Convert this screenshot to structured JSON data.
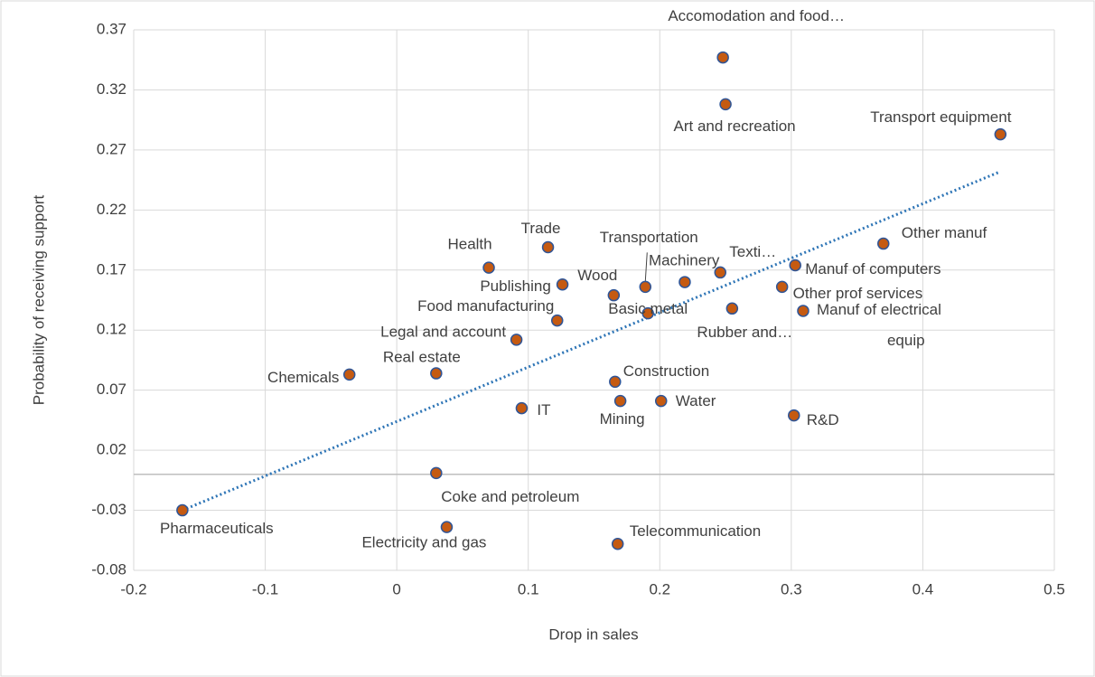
{
  "chart_data": {
    "type": "scatter",
    "x_label": "Drop in sales",
    "y_label": "Probability of receiving support",
    "xlim": [
      -0.2,
      0.5
    ],
    "ylim": [
      -0.08,
      0.37
    ],
    "xticks": [
      -0.2,
      -0.1,
      0,
      0.1,
      0.2,
      0.3,
      0.4,
      0.5
    ],
    "yticks": [
      -0.08,
      -0.03,
      0.02,
      0.07,
      0.12,
      0.17,
      0.22,
      0.27,
      0.32,
      0.37
    ],
    "grid": true,
    "color": "#c55a11",
    "edge_color": "#2f5597",
    "point_labels": [
      "Accomodation and food…",
      "Art and recreation",
      "Transport equipment",
      "Other manuf",
      "Texti…",
      "Manuf of computers",
      "Other prof services",
      "Rubber and…",
      "Manuf of electrical equip",
      "Machinery",
      "Transportation",
      "Basic metal",
      "Wood",
      "Publishing",
      "Trade",
      "Food manufacturing",
      "Health",
      "Legal and account",
      "Real estate",
      "Chemicals",
      "Construction",
      "Mining",
      "Water",
      "IT",
      "R&D",
      "Coke and petroleum",
      "Pharmaceuticals",
      "Electricity and gas",
      "Telecommunication"
    ],
    "x": [
      0.248,
      0.25,
      0.459,
      0.37,
      0.246,
      0.303,
      0.293,
      0.255,
      0.309,
      0.219,
      0.189,
      0.191,
      0.165,
      0.126,
      0.115,
      0.122,
      0.07,
      0.091,
      0.03,
      -0.036,
      0.166,
      0.17,
      0.201,
      0.095,
      0.302,
      0.03,
      -0.163,
      0.038,
      0.168
    ],
    "y": [
      0.347,
      0.308,
      0.283,
      0.192,
      0.168,
      0.174,
      0.156,
      0.138,
      0.136,
      0.16,
      0.156,
      0.134,
      0.149,
      0.158,
      0.189,
      0.128,
      0.172,
      0.112,
      0.084,
      0.083,
      0.077,
      0.061,
      0.061,
      0.055,
      0.049,
      0.001,
      -0.03,
      -0.044,
      -0.058
    ],
    "trendline": {
      "color": "#2e75b6",
      "x": [
        -0.163,
        0.459
      ],
      "y": [
        -0.03,
        0.252
      ]
    }
  }
}
